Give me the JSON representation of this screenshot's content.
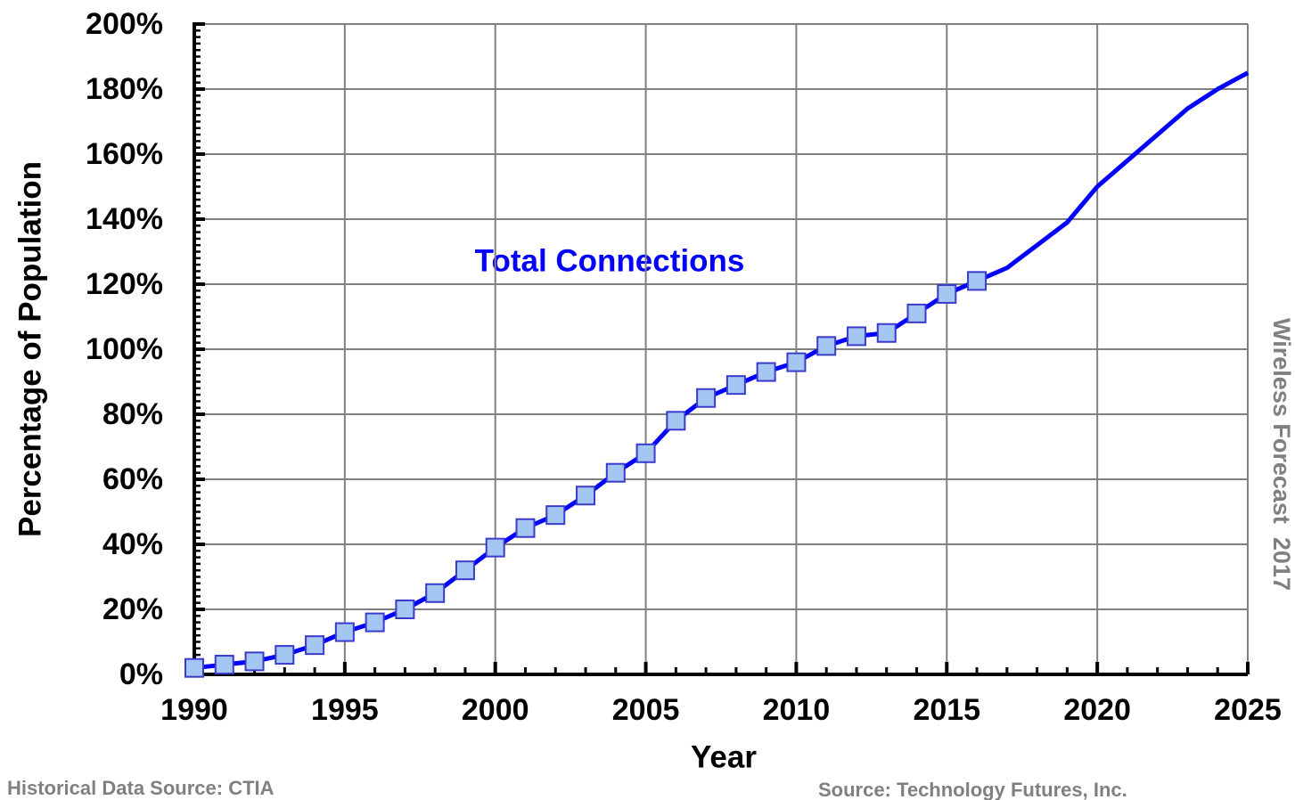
{
  "chart_data": {
    "type": "line",
    "annotation": "Total Connections",
    "xlabel": "Year",
    "ylabel": "Percentage of Population",
    "side_note": "Wireless Forecast  2017",
    "source_left": "Historical Data Source: CTIA",
    "source_right": "Source: Technology Futures, Inc.",
    "x": [
      1990,
      1991,
      1992,
      1993,
      1994,
      1995,
      1996,
      1997,
      1998,
      1999,
      2000,
      2001,
      2002,
      2003,
      2004,
      2005,
      2006,
      2007,
      2008,
      2009,
      2010,
      2011,
      2012,
      2013,
      2014,
      2015,
      2016,
      2017,
      2018,
      2019,
      2020,
      2021,
      2022,
      2023,
      2024,
      2025
    ],
    "series": [
      {
        "name": "Total Connections",
        "color": "#0000ff",
        "marker": true,
        "values": [
          2,
          3,
          4,
          6,
          9,
          13,
          16,
          20,
          25,
          32,
          39,
          45,
          49,
          55,
          62,
          68,
          78,
          85,
          89,
          93,
          96,
          101,
          104,
          105,
          111,
          117,
          121,
          null,
          null,
          null,
          null,
          null,
          null,
          null,
          null,
          null
        ]
      },
      {
        "color": "#0000ff",
        "marker": false,
        "values": [
          null,
          null,
          null,
          null,
          null,
          null,
          null,
          null,
          null,
          null,
          null,
          null,
          null,
          null,
          null,
          null,
          null,
          null,
          null,
          null,
          null,
          null,
          null,
          null,
          null,
          null,
          121,
          125,
          132,
          139,
          150,
          158,
          166,
          174,
          180,
          185
        ]
      }
    ],
    "xlim": [
      1990,
      2025
    ],
    "xticks": [
      1990,
      1995,
      2000,
      2005,
      2010,
      2015,
      2020,
      2025
    ],
    "ylim": [
      0,
      200
    ],
    "yticks": [
      {
        "value": 0,
        "label": "0%"
      },
      {
        "value": 20,
        "label": "20%"
      },
      {
        "value": 40,
        "label": "40%"
      },
      {
        "value": 60,
        "label": "60%"
      },
      {
        "value": 80,
        "label": "80%"
      },
      {
        "value": 100,
        "label": "100%"
      },
      {
        "value": 120,
        "label": "120%"
      },
      {
        "value": 140,
        "label": "140%"
      },
      {
        "value": 160,
        "label": "160%"
      },
      {
        "value": 180,
        "label": "180%"
      },
      {
        "value": 200,
        "label": "200%"
      }
    ],
    "grid": true,
    "minor_ticks": true
  }
}
